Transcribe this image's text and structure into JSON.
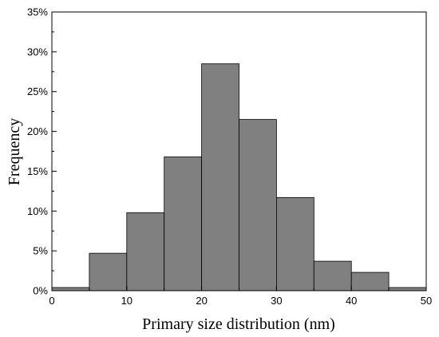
{
  "colors": {
    "bar_fill": "#808080",
    "bar_stroke": "#000000",
    "axis": "#000000",
    "background": "#ffffff"
  },
  "chart_data": {
    "type": "bar",
    "title": "",
    "xlabel": "Primary size distribution (nm)",
    "ylabel": "Frequency",
    "bin_edges": [
      0,
      5,
      10,
      15,
      20,
      25,
      30,
      35,
      40,
      45,
      50
    ],
    "values": [
      0.4,
      4.7,
      9.8,
      16.8,
      28.5,
      21.5,
      11.7,
      3.7,
      2.3,
      0.4
    ],
    "xlim": [
      0,
      50
    ],
    "ylim": [
      0,
      35
    ],
    "x_ticks": [
      0,
      10,
      20,
      30,
      40,
      50
    ],
    "x_tick_labels": [
      "0",
      "10",
      "20",
      "30",
      "40",
      "50"
    ],
    "y_ticks": [
      0,
      5,
      10,
      15,
      20,
      25,
      30,
      35
    ],
    "y_tick_labels": [
      "0%",
      "5%",
      "10%",
      "15%",
      "20%",
      "25%",
      "30%",
      "35%"
    ],
    "grid": false,
    "legend": "none"
  }
}
